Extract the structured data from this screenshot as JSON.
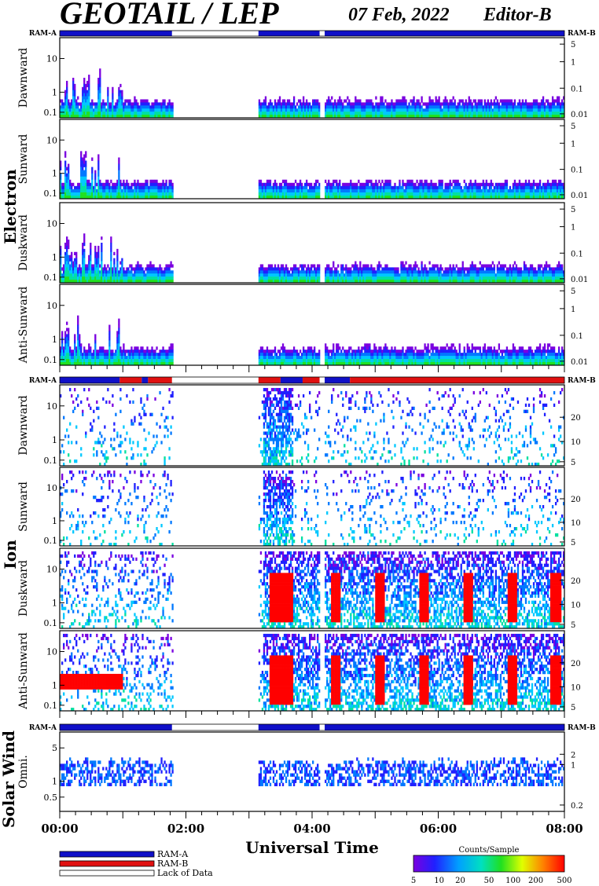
{
  "header": {
    "title": "GEOTAIL / LEP",
    "date": "07 Feb, 2022",
    "editor": "Editor-B"
  },
  "colors": {
    "ram_a": "#1010c8",
    "ram_b": "#e01010",
    "lack_of_data": "#ffffff",
    "background": "#ffffff"
  },
  "legend": {
    "ram_a_label": "RAM-A",
    "ram_b_label": "RAM-B",
    "lack_label": "Lack of Data",
    "colorbar_title": "Counts/Sample",
    "colorbar_ticks": [
      "5",
      "10",
      "20",
      "50",
      "100",
      "200",
      "500"
    ]
  },
  "chart_data": {
    "type": "heatmap",
    "xlabel": "Universal Time",
    "x_ticks": [
      "00:00",
      "02:00",
      "04:00",
      "06:00",
      "08:00"
    ],
    "x_range_hours": [
      0,
      8
    ],
    "data_gaps_hours": [
      [
        1.78,
        3.15
      ],
      [
        4.12,
        4.2
      ]
    ],
    "groups": [
      {
        "name": "Electron",
        "ram_left": "RAM-A",
        "ram_right": "RAM-B",
        "ram_segments": [
          {
            "start": 0,
            "end": 1.78,
            "mode": "RAM-A"
          },
          {
            "start": 1.78,
            "end": 3.15,
            "mode": "Lack of Data"
          },
          {
            "start": 3.15,
            "end": 4.12,
            "mode": "RAM-A"
          },
          {
            "start": 4.12,
            "end": 4.2,
            "mode": "Lack of Data"
          },
          {
            "start": 4.2,
            "end": 8,
            "mode": "RAM-A"
          }
        ],
        "panels": [
          {
            "label": "Dawnward",
            "left_ticks": [
              "10",
              "1",
              "0.1"
            ],
            "right_ticks": [
              "5",
              "1",
              "0.1",
              "0.01"
            ]
          },
          {
            "label": "Sunward",
            "left_ticks": [
              "10",
              "1",
              "0.1"
            ],
            "right_ticks": [
              "5",
              "1",
              "0.1",
              "0.01"
            ]
          },
          {
            "label": "Duskward",
            "left_ticks": [
              "10",
              "1",
              "0.1"
            ],
            "right_ticks": [
              "5",
              "1",
              "0.1",
              "0.01"
            ]
          },
          {
            "label": "Anti-Sunward",
            "left_ticks": [
              "10",
              "1",
              "0.1"
            ],
            "right_ticks": [
              "5",
              "1",
              "0.1",
              "0.01"
            ]
          }
        ]
      },
      {
        "name": "Ion",
        "ram_left": "RAM-A",
        "ram_right": "RAM-B",
        "ram_segments": [
          {
            "start": 0,
            "end": 0.95,
            "mode": "RAM-A"
          },
          {
            "start": 0.95,
            "end": 1.3,
            "mode": "RAM-B"
          },
          {
            "start": 1.3,
            "end": 1.4,
            "mode": "RAM-A"
          },
          {
            "start": 1.4,
            "end": 1.78,
            "mode": "RAM-B"
          },
          {
            "start": 1.78,
            "end": 3.15,
            "mode": "Lack of Data"
          },
          {
            "start": 3.15,
            "end": 3.5,
            "mode": "RAM-B"
          },
          {
            "start": 3.5,
            "end": 3.85,
            "mode": "RAM-A"
          },
          {
            "start": 3.85,
            "end": 4.12,
            "mode": "RAM-B"
          },
          {
            "start": 4.12,
            "end": 4.2,
            "mode": "Lack of Data"
          },
          {
            "start": 4.2,
            "end": 4.6,
            "mode": "RAM-A"
          },
          {
            "start": 4.6,
            "end": 8,
            "mode": "RAM-B"
          }
        ],
        "panels": [
          {
            "label": "Dawnward",
            "left_ticks": [
              "10",
              "1",
              "0.1"
            ],
            "right_ticks": [
              "20",
              "10",
              "5"
            ]
          },
          {
            "label": "Sunward",
            "left_ticks": [
              "10",
              "1",
              "0.1"
            ],
            "right_ticks": [
              "20",
              "10",
              "5"
            ]
          },
          {
            "label": "Duskward",
            "left_ticks": [
              "10",
              "1",
              "0.1"
            ],
            "right_ticks": [
              "20",
              "10",
              "5"
            ]
          },
          {
            "label": "Anti-Sunward",
            "left_ticks": [
              "10",
              "1",
              "0.1"
            ],
            "right_ticks": [
              "20",
              "10",
              "5"
            ]
          }
        ]
      },
      {
        "name": "Solar Wind",
        "ram_left": "RAM-A",
        "ram_right": "RAM-B",
        "ram_segments": [
          {
            "start": 0,
            "end": 1.78,
            "mode": "RAM-A"
          },
          {
            "start": 1.78,
            "end": 3.15,
            "mode": "Lack of Data"
          },
          {
            "start": 3.15,
            "end": 4.12,
            "mode": "RAM-A"
          },
          {
            "start": 4.12,
            "end": 4.2,
            "mode": "Lack of Data"
          },
          {
            "start": 4.2,
            "end": 8,
            "mode": "RAM-A"
          }
        ],
        "panels": [
          {
            "label": "Omni.",
            "left_ticks": [
              "5",
              "1",
              "0.5"
            ],
            "right_ticks": [
              "2",
              "1",
              "0.2"
            ]
          }
        ]
      }
    ]
  }
}
